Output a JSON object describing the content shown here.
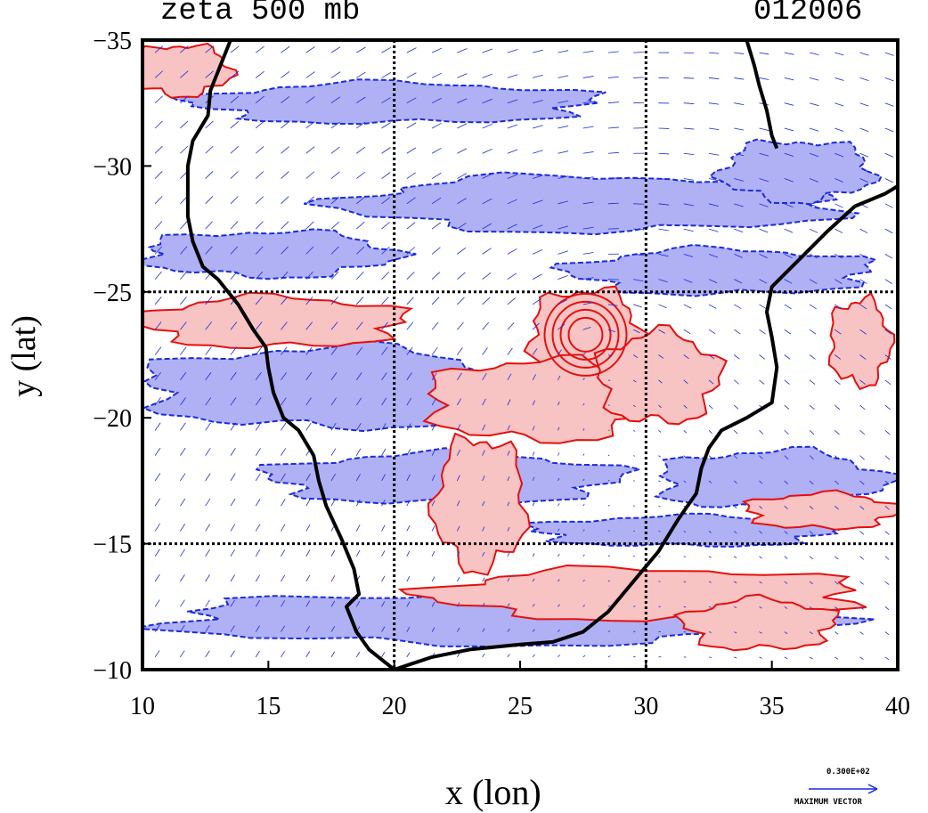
{
  "title": "zeta 500 mb",
  "timestamp": "012006",
  "axes": {
    "xlabel": "x (lon)",
    "ylabel": "y (lat)",
    "xticks": [
      "10",
      "15",
      "20",
      "25",
      "30",
      "35",
      "40"
    ],
    "yticks": [
      "−35",
      "−30",
      "−25",
      "−20",
      "−15",
      "−10"
    ]
  },
  "legend": {
    "vector_value": "0.300E+02",
    "vector_label": "MAXIMUM VECTOR"
  },
  "colors": {
    "positive_fill": "#f7c3c3",
    "positive_line": "#e41010",
    "negative_fill": "#b0b0f4",
    "negative_line": "#1a2ae0",
    "vector": "#1a2ae0",
    "coast": "#000000"
  },
  "chart_data": {
    "type": "map",
    "x_range": [
      10,
      40
    ],
    "y_range": [
      -35,
      -10
    ],
    "grid_lines_x": [
      20,
      30
    ],
    "grid_lines_y": [
      -25,
      -15
    ],
    "coastline": [
      [
        13.5,
        -35
      ],
      [
        13.1,
        -34
      ],
      [
        12.7,
        -33
      ],
      [
        12.6,
        -32
      ],
      [
        12.0,
        -31
      ],
      [
        11.8,
        -30
      ],
      [
        11.8,
        -29
      ],
      [
        11.8,
        -28
      ],
      [
        12.0,
        -27
      ],
      [
        12.4,
        -26
      ],
      [
        13.0,
        -25.5
      ],
      [
        13.8,
        -24.5
      ],
      [
        14.4,
        -23.5
      ],
      [
        14.9,
        -22.8
      ],
      [
        15.0,
        -22
      ],
      [
        15.2,
        -21
      ],
      [
        15.6,
        -20
      ],
      [
        16.2,
        -19.5
      ],
      [
        16.8,
        -18.5
      ],
      [
        17.0,
        -17.5
      ],
      [
        17.3,
        -16.5
      ],
      [
        17.9,
        -15.2
      ],
      [
        18.4,
        -14
      ],
      [
        18.6,
        -13
      ],
      [
        18.1,
        -12.5
      ],
      [
        18.5,
        -11.5
      ],
      [
        19.0,
        -10.8
      ],
      [
        19.5,
        -10.4
      ],
      [
        20.0,
        -10.0
      ],
      [
        20.6,
        -10.2
      ],
      [
        21.5,
        -10.5
      ],
      [
        23.0,
        -10.8
      ],
      [
        25.0,
        -11.0
      ],
      [
        26.3,
        -11.1
      ],
      [
        27.5,
        -11.5
      ],
      [
        28.5,
        -12.3
      ],
      [
        29.5,
        -13.5
      ],
      [
        30.5,
        -14.7
      ],
      [
        31.3,
        -16.0
      ],
      [
        32.0,
        -17.0
      ],
      [
        32.2,
        -18.0
      ],
      [
        32.5,
        -18.8
      ],
      [
        33.0,
        -19.5
      ],
      [
        34.0,
        -20.0
      ],
      [
        35.0,
        -20.6
      ],
      [
        35.2,
        -22.0
      ],
      [
        35.0,
        -23.2
      ],
      [
        34.8,
        -24.2
      ],
      [
        35.0,
        -25.2
      ],
      [
        36.0,
        -26.2
      ],
      [
        37.2,
        -27.4
      ],
      [
        38.3,
        -28.4
      ],
      [
        39.5,
        -28.9
      ],
      [
        40.0,
        -29.2
      ]
    ],
    "coastline_north": [
      [
        34.0,
        -35
      ],
      [
        34.3,
        -34
      ],
      [
        34.5,
        -33.2
      ],
      [
        34.8,
        -32.2
      ],
      [
        35.0,
        -31.2
      ],
      [
        35.2,
        -30.7
      ]
    ],
    "positive_zeta_regions": [
      {
        "center": [
          27.6,
          -23.3
        ],
        "radius": [
          2.2,
          1.8
        ]
      },
      {
        "center": [
          25.8,
          -20.7
        ],
        "radius": [
          4.5,
          1.6
        ]
      },
      {
        "center": [
          30.5,
          -21.6
        ],
        "radius": [
          2.4,
          1.8
        ]
      },
      {
        "center": [
          15.2,
          -23.8
        ],
        "radius": [
          5.2,
          1.0
        ]
      },
      {
        "center": [
          30.0,
          -13.0
        ],
        "radius": [
          8.5,
          1.0
        ]
      },
      {
        "center": [
          23.4,
          -16.6
        ],
        "radius": [
          1.8,
          2.6
        ]
      },
      {
        "center": [
          11.5,
          -33.8
        ],
        "radius": [
          2.0,
          1.0
        ]
      },
      {
        "center": [
          38.5,
          -23.0
        ],
        "radius": [
          1.2,
          1.7
        ]
      },
      {
        "center": [
          37.0,
          -16.3
        ],
        "radius": [
          3.0,
          0.7
        ]
      },
      {
        "center": [
          34.5,
          -11.8
        ],
        "radius": [
          3.0,
          1.0
        ]
      }
    ],
    "negative_zeta_regions": [
      {
        "center": [
          15.0,
          -26.5
        ],
        "radius": [
          5.0,
          0.9
        ]
      },
      {
        "center": [
          17.5,
          -21.2
        ],
        "radius": [
          7.5,
          1.6
        ]
      },
      {
        "center": [
          22.0,
          -17.6
        ],
        "radius": [
          7.0,
          1.0
        ]
      },
      {
        "center": [
          33.0,
          -25.8
        ],
        "radius": [
          6.0,
          0.9
        ]
      },
      {
        "center": [
          28.0,
          -28.5
        ],
        "radius": [
          10.0,
          1.1
        ]
      },
      {
        "center": [
          36.0,
          -29.8
        ],
        "radius": [
          3.0,
          1.2
        ]
      },
      {
        "center": [
          24.0,
          -12.0
        ],
        "radius": [
          13.0,
          1.0
        ]
      },
      {
        "center": [
          35.0,
          -17.5
        ],
        "radius": [
          4.5,
          1.2
        ]
      },
      {
        "center": [
          31.5,
          -15.5
        ],
        "radius": [
          6.0,
          0.6
        ]
      },
      {
        "center": [
          20.0,
          -32.5
        ],
        "radius": [
          8.0,
          0.8
        ]
      }
    ],
    "vector_grid_step": 1.0,
    "max_vector": 30
  }
}
